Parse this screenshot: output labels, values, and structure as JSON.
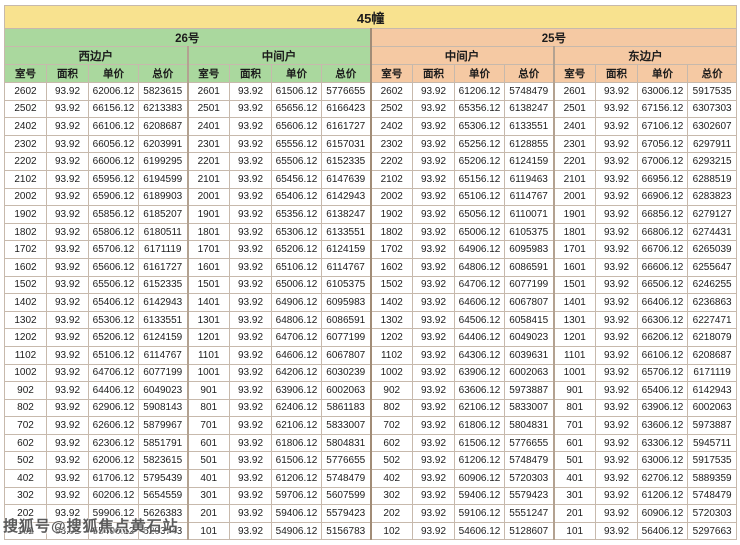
{
  "title": "45幢",
  "watermark": "搜狐号@搜狐焦点黄石站",
  "colors": {
    "title_bg": "#f8e28f",
    "building26_bg": "#aad89e",
    "building25_bg": "#f5c9a3",
    "grid_line": "#c7b9ac",
    "cell_bg": "#ffffff",
    "text": "#1c1c1c"
  },
  "table": {
    "column_headers": [
      "室号",
      "面积",
      "单价",
      "总价"
    ],
    "groups": [
      {
        "building": "26号",
        "sections": [
          "西边户",
          "中间户"
        ]
      },
      {
        "building": "25号",
        "sections": [
          "中间户",
          "东边户"
        ]
      }
    ],
    "rows": [
      [
        [
          "2602",
          "93.92",
          "62006.12",
          "5823615"
        ],
        [
          "2601",
          "93.92",
          "61506.12",
          "5776655"
        ],
        [
          "2602",
          "93.92",
          "61206.12",
          "5748479"
        ],
        [
          "2601",
          "93.92",
          "63006.12",
          "5917535"
        ]
      ],
      [
        [
          "2502",
          "93.92",
          "66156.12",
          "6213383"
        ],
        [
          "2501",
          "93.92",
          "65656.12",
          "6166423"
        ],
        [
          "2502",
          "93.92",
          "65356.12",
          "6138247"
        ],
        [
          "2501",
          "93.92",
          "67156.12",
          "6307303"
        ]
      ],
      [
        [
          "2402",
          "93.92",
          "66106.12",
          "6208687"
        ],
        [
          "2401",
          "93.92",
          "65606.12",
          "6161727"
        ],
        [
          "2402",
          "93.92",
          "65306.12",
          "6133551"
        ],
        [
          "2401",
          "93.92",
          "67106.12",
          "6302607"
        ]
      ],
      [
        [
          "2302",
          "93.92",
          "66056.12",
          "6203991"
        ],
        [
          "2301",
          "93.92",
          "65556.12",
          "6157031"
        ],
        [
          "2302",
          "93.92",
          "65256.12",
          "6128855"
        ],
        [
          "2301",
          "93.92",
          "67056.12",
          "6297911"
        ]
      ],
      [
        [
          "2202",
          "93.92",
          "66006.12",
          "6199295"
        ],
        [
          "2201",
          "93.92",
          "65506.12",
          "6152335"
        ],
        [
          "2202",
          "93.92",
          "65206.12",
          "6124159"
        ],
        [
          "2201",
          "93.92",
          "67006.12",
          "6293215"
        ]
      ],
      [
        [
          "2102",
          "93.92",
          "65956.12",
          "6194599"
        ],
        [
          "2101",
          "93.92",
          "65456.12",
          "6147639"
        ],
        [
          "2102",
          "93.92",
          "65156.12",
          "6119463"
        ],
        [
          "2101",
          "93.92",
          "66956.12",
          "6288519"
        ]
      ],
      [
        [
          "2002",
          "93.92",
          "65906.12",
          "6189903"
        ],
        [
          "2001",
          "93.92",
          "65406.12",
          "6142943"
        ],
        [
          "2002",
          "93.92",
          "65106.12",
          "6114767"
        ],
        [
          "2001",
          "93.92",
          "66906.12",
          "6283823"
        ]
      ],
      [
        [
          "1902",
          "93.92",
          "65856.12",
          "6185207"
        ],
        [
          "1901",
          "93.92",
          "65356.12",
          "6138247"
        ],
        [
          "1902",
          "93.92",
          "65056.12",
          "6110071"
        ],
        [
          "1901",
          "93.92",
          "66856.12",
          "6279127"
        ]
      ],
      [
        [
          "1802",
          "93.92",
          "65806.12",
          "6180511"
        ],
        [
          "1801",
          "93.92",
          "65306.12",
          "6133551"
        ],
        [
          "1802",
          "93.92",
          "65006.12",
          "6105375"
        ],
        [
          "1801",
          "93.92",
          "66806.12",
          "6274431"
        ]
      ],
      [
        [
          "1702",
          "93.92",
          "65706.12",
          "6171119"
        ],
        [
          "1701",
          "93.92",
          "65206.12",
          "6124159"
        ],
        [
          "1702",
          "93.92",
          "64906.12",
          "6095983"
        ],
        [
          "1701",
          "93.92",
          "66706.12",
          "6265039"
        ]
      ],
      [
        [
          "1602",
          "93.92",
          "65606.12",
          "6161727"
        ],
        [
          "1601",
          "93.92",
          "65106.12",
          "6114767"
        ],
        [
          "1602",
          "93.92",
          "64806.12",
          "6086591"
        ],
        [
          "1601",
          "93.92",
          "66606.12",
          "6255647"
        ]
      ],
      [
        [
          "1502",
          "93.92",
          "65506.12",
          "6152335"
        ],
        [
          "1501",
          "93.92",
          "65006.12",
          "6105375"
        ],
        [
          "1502",
          "93.92",
          "64706.12",
          "6077199"
        ],
        [
          "1501",
          "93.92",
          "66506.12",
          "6246255"
        ]
      ],
      [
        [
          "1402",
          "93.92",
          "65406.12",
          "6142943"
        ],
        [
          "1401",
          "93.92",
          "64906.12",
          "6095983"
        ],
        [
          "1402",
          "93.92",
          "64606.12",
          "6067807"
        ],
        [
          "1401",
          "93.92",
          "66406.12",
          "6236863"
        ]
      ],
      [
        [
          "1302",
          "93.92",
          "65306.12",
          "6133551"
        ],
        [
          "1301",
          "93.92",
          "64806.12",
          "6086591"
        ],
        [
          "1302",
          "93.92",
          "64506.12",
          "6058415"
        ],
        [
          "1301",
          "93.92",
          "66306.12",
          "6227471"
        ]
      ],
      [
        [
          "1202",
          "93.92",
          "65206.12",
          "6124159"
        ],
        [
          "1201",
          "93.92",
          "64706.12",
          "6077199"
        ],
        [
          "1202",
          "93.92",
          "64406.12",
          "6049023"
        ],
        [
          "1201",
          "93.92",
          "66206.12",
          "6218079"
        ]
      ],
      [
        [
          "1102",
          "93.92",
          "65106.12",
          "6114767"
        ],
        [
          "1101",
          "93.92",
          "64606.12",
          "6067807"
        ],
        [
          "1102",
          "93.92",
          "64306.12",
          "6039631"
        ],
        [
          "1101",
          "93.92",
          "66106.12",
          "6208687"
        ]
      ],
      [
        [
          "1002",
          "93.92",
          "64706.12",
          "6077199"
        ],
        [
          "1001",
          "93.92",
          "64206.12",
          "6030239"
        ],
        [
          "1002",
          "93.92",
          "63906.12",
          "6002063"
        ],
        [
          "1001",
          "93.92",
          "65706.12",
          "6171119"
        ]
      ],
      [
        [
          "902",
          "93.92",
          "64406.12",
          "6049023"
        ],
        [
          "901",
          "93.92",
          "63906.12",
          "6002063"
        ],
        [
          "902",
          "93.92",
          "63606.12",
          "5973887"
        ],
        [
          "901",
          "93.92",
          "65406.12",
          "6142943"
        ]
      ],
      [
        [
          "802",
          "93.92",
          "62906.12",
          "5908143"
        ],
        [
          "801",
          "93.92",
          "62406.12",
          "5861183"
        ],
        [
          "802",
          "93.92",
          "62106.12",
          "5833007"
        ],
        [
          "801",
          "93.92",
          "63906.12",
          "6002063"
        ]
      ],
      [
        [
          "702",
          "93.92",
          "62606.12",
          "5879967"
        ],
        [
          "701",
          "93.92",
          "62106.12",
          "5833007"
        ],
        [
          "702",
          "93.92",
          "61806.12",
          "5804831"
        ],
        [
          "701",
          "93.92",
          "63606.12",
          "5973887"
        ]
      ],
      [
        [
          "602",
          "93.92",
          "62306.12",
          "5851791"
        ],
        [
          "601",
          "93.92",
          "61806.12",
          "5804831"
        ],
        [
          "602",
          "93.92",
          "61506.12",
          "5776655"
        ],
        [
          "601",
          "93.92",
          "63306.12",
          "5945711"
        ]
      ],
      [
        [
          "502",
          "93.92",
          "62006.12",
          "5823615"
        ],
        [
          "501",
          "93.92",
          "61506.12",
          "5776655"
        ],
        [
          "502",
          "93.92",
          "61206.12",
          "5748479"
        ],
        [
          "501",
          "93.92",
          "63006.12",
          "5917535"
        ]
      ],
      [
        [
          "402",
          "93.92",
          "61706.12",
          "5795439"
        ],
        [
          "401",
          "93.92",
          "61206.12",
          "5748479"
        ],
        [
          "402",
          "93.92",
          "60906.12",
          "5720303"
        ],
        [
          "401",
          "93.92",
          "62706.12",
          "5889359"
        ]
      ],
      [
        [
          "302",
          "93.92",
          "60206.12",
          "5654559"
        ],
        [
          "301",
          "93.92",
          "59706.12",
          "5607599"
        ],
        [
          "302",
          "93.92",
          "59406.12",
          "5579423"
        ],
        [
          "301",
          "93.92",
          "61206.12",
          "5748479"
        ]
      ],
      [
        [
          "202",
          "93.92",
          "59906.12",
          "5626383"
        ],
        [
          "201",
          "93.92",
          "59406.12",
          "5579423"
        ],
        [
          "202",
          "93.92",
          "59106.12",
          "5551247"
        ],
        [
          "201",
          "93.92",
          "60906.12",
          "5720303"
        ]
      ],
      [
        [
          "102",
          "93.92",
          "55406.12",
          "5203743"
        ],
        [
          "101",
          "93.92",
          "54906.12",
          "5156783"
        ],
        [
          "102",
          "93.92",
          "54606.12",
          "5128607"
        ],
        [
          "101",
          "93.92",
          "56406.12",
          "5297663"
        ]
      ]
    ]
  }
}
